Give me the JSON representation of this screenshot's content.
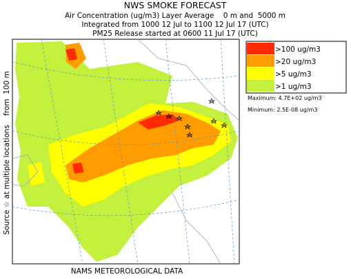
{
  "header": {
    "title": "NWS SMOKE FORECAST",
    "lines": [
      "Air Concentration (ug/m3) Layer Average    0 m and  5000 m",
      "Integrated from 1000 12 Jul to 1100 12 Jul 17 (UTC)",
      "PM25 Release started at 0600 11 Jul 17 (UTC)"
    ]
  },
  "legend": {
    "items": [
      {
        "label": ">100 ug/m3",
        "color": "#ff2a00"
      },
      {
        "label": ">20 ug/m3",
        "color": "#ff9c00"
      },
      {
        "label": ">5 ug/m3",
        "color": "#ffff00"
      },
      {
        "label": ">1 ug/m3",
        "color": "#c3f03c"
      }
    ],
    "maximum": "Maximum: 4.7E+02 ug/m3",
    "minimum": "Minimum: 2.5E-08 ug/m3"
  },
  "source_label": "Source ☆ at multiple locations    from  100 m",
  "footer": "NAMS METEOROLOGICAL DATA"
}
